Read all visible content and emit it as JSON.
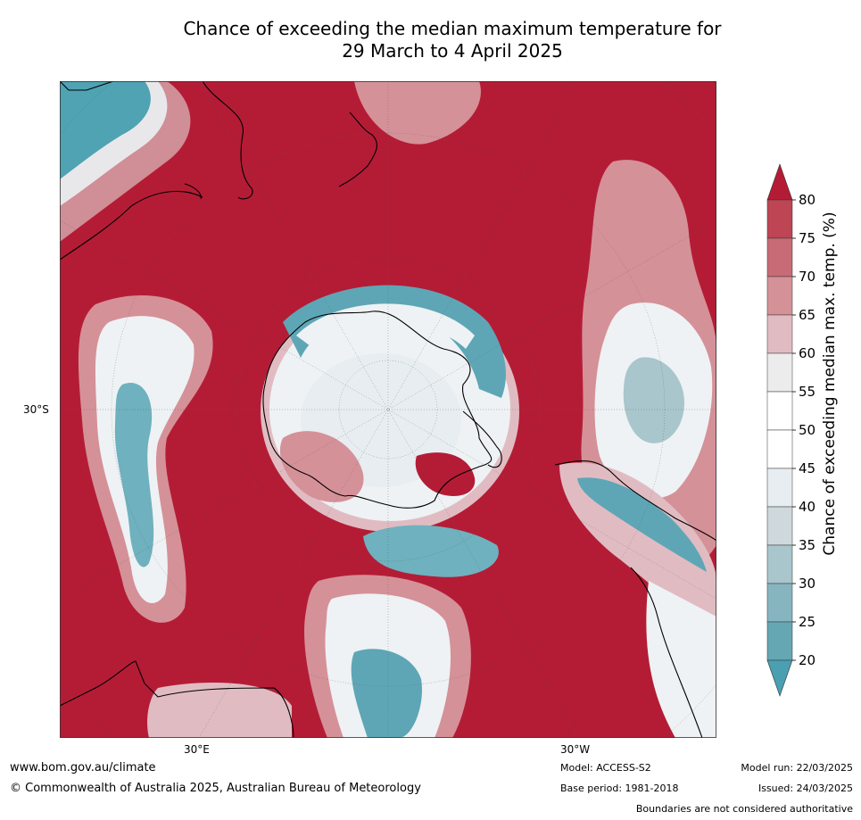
{
  "title": {
    "line1": "Chance of exceeding the median maximum temperature for",
    "line2": "29 March to 4 April 2025"
  },
  "map": {
    "projection": "south polar stereographic",
    "labels": {
      "lat_left": "30°S",
      "lon_bottom_left": "30°E",
      "lon_bottom_right": "30°W"
    },
    "colors": {
      "ocean_warm": "#b41c36",
      "near_median": "#eef2f4",
      "cool": "#4f9fb0",
      "coast": "#000000"
    }
  },
  "colorbar": {
    "label": "Chance of exceeding median max. temp. (%)",
    "ticks": [
      "20",
      "25",
      "30",
      "35",
      "40",
      "45",
      "50",
      "55",
      "60",
      "65",
      "70",
      "75",
      "80"
    ],
    "colors": [
      "#66a7b4",
      "#86b5c0",
      "#a8c6cc",
      "#cfd8dc",
      "#e7edf0",
      "#ffffff",
      "#ffffff",
      "#ececec",
      "#e0bcc2",
      "#d59198",
      "#c86b76",
      "#bd4554"
    ],
    "over_color": "#b41c36",
    "under_color": "#4a9fb0"
  },
  "footer": {
    "website": "www.bom.gov.au/climate",
    "copyright": "© Commonwealth of Australia 2025, Australian Bureau of Meteorology",
    "model": "Model: ACCESS-S2",
    "base_period": "Base period: 1981-2018",
    "model_run": "Model run: 22/03/2025",
    "issued": "Issued: 24/03/2025",
    "disclaimer": "Boundaries are not considered authoritative"
  }
}
